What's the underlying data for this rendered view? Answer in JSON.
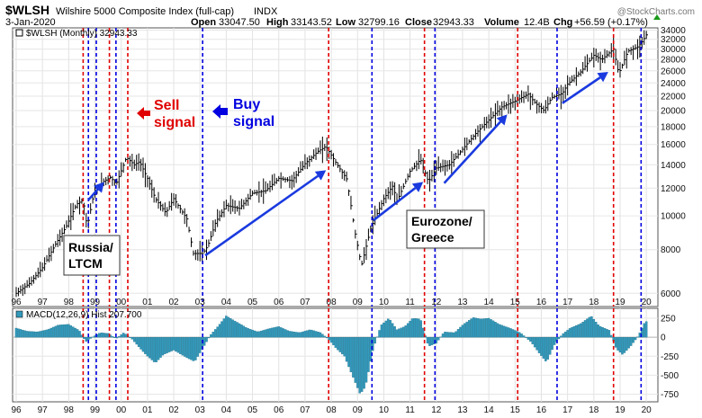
{
  "header": {
    "symbol": "$WLSH",
    "name": "Wilshire 5000 Composite Index (full-cap)",
    "exchange": "INDX",
    "date": "3-Jan-2020",
    "open_label": "Open",
    "open": "33047.50",
    "high_label": "High",
    "high": "33143.52",
    "low_label": "Low",
    "low": "32799.16",
    "close_label": "Close",
    "close": "32943.33",
    "volume_label": "Volume",
    "volume": "12.4B",
    "chg_label": "Chg",
    "chg": "+56.59 (+0.17%)",
    "watermark": "@StockCharts.com"
  },
  "colors": {
    "sell_line": "#e00000",
    "buy_line": "#0000e0",
    "price": "#000000",
    "macd_hist": "#3399bb",
    "arrow": "#1a3adf"
  },
  "chart_data": [
    {
      "type": "line",
      "legend": "$WLSH (Monthly) 32943.33",
      "yscale": "log",
      "ylim": [
        5500,
        34500
      ],
      "xlim": [
        1996.0,
        2020.2
      ],
      "yticks": [
        6000,
        8000,
        10000,
        12000,
        14000,
        16000,
        18000,
        20000,
        22000,
        24000,
        26000,
        28000,
        30000,
        32000,
        34000
      ],
      "xticks": [
        {
          "x": 1996,
          "label": "96"
        },
        {
          "x": 1997,
          "label": "97"
        },
        {
          "x": 1998,
          "label": "98"
        },
        {
          "x": 1999,
          "label": "99"
        },
        {
          "x": 2000,
          "label": "00"
        },
        {
          "x": 2001,
          "label": "01"
        },
        {
          "x": 2002,
          "label": "02"
        },
        {
          "x": 2003,
          "label": "03"
        },
        {
          "x": 2004,
          "label": "04"
        },
        {
          "x": 2005,
          "label": "05"
        },
        {
          "x": 2006,
          "label": "06"
        },
        {
          "x": 2007,
          "label": "07"
        },
        {
          "x": 2008,
          "label": "08"
        },
        {
          "x": 2009,
          "label": "09"
        },
        {
          "x": 2010,
          "label": "10"
        },
        {
          "x": 2011,
          "label": "11"
        },
        {
          "x": 2012,
          "label": "12"
        },
        {
          "x": 2013,
          "label": "13"
        },
        {
          "x": 2014,
          "label": "14"
        },
        {
          "x": 2015,
          "label": "15"
        },
        {
          "x": 2016,
          "label": "16"
        },
        {
          "x": 2017,
          "label": "17"
        },
        {
          "x": 2018,
          "label": "18"
        },
        {
          "x": 2019,
          "label": "19"
        },
        {
          "x": 2020,
          "label": "20"
        }
      ],
      "series": [
        {
          "points": [
            [
              1996.0,
              6000
            ],
            [
              1996.5,
              6400
            ],
            [
              1997.0,
              7100
            ],
            [
              1997.5,
              8300
            ],
            [
              1997.9,
              9300
            ],
            [
              1998.3,
              10800
            ],
            [
              1998.55,
              11100
            ],
            [
              1998.7,
              9300
            ],
            [
              1998.95,
              11500
            ],
            [
              1999.3,
              12500
            ],
            [
              1999.6,
              12900
            ],
            [
              1999.8,
              12300
            ],
            [
              2000.2,
              14700
            ],
            [
              2000.5,
              14000
            ],
            [
              2000.7,
              14300
            ],
            [
              2001.0,
              12800
            ],
            [
              2001.3,
              11200
            ],
            [
              2001.7,
              10200
            ],
            [
              2002.0,
              11200
            ],
            [
              2002.5,
              9800
            ],
            [
              2002.75,
              7800
            ],
            [
              2003.1,
              7800
            ],
            [
              2003.3,
              8200
            ],
            [
              2003.6,
              9600
            ],
            [
              2004.0,
              10700
            ],
            [
              2004.5,
              10500
            ],
            [
              2005.0,
              11600
            ],
            [
              2005.5,
              11800
            ],
            [
              2006.0,
              12800
            ],
            [
              2006.5,
              12600
            ],
            [
              2007.0,
              14100
            ],
            [
              2007.5,
              15300
            ],
            [
              2007.8,
              15800
            ],
            [
              2008.2,
              14100
            ],
            [
              2008.6,
              12700
            ],
            [
              2008.9,
              9000
            ],
            [
              2009.15,
              7200
            ],
            [
              2009.5,
              9200
            ],
            [
              2010.0,
              11200
            ],
            [
              2010.35,
              12200
            ],
            [
              2010.5,
              11000
            ],
            [
              2011.0,
              13400
            ],
            [
              2011.4,
              14500
            ],
            [
              2011.7,
              12500
            ],
            [
              2012.0,
              13700
            ],
            [
              2012.5,
              14000
            ],
            [
              2013.0,
              15500
            ],
            [
              2013.5,
              17200
            ],
            [
              2014.0,
              18800
            ],
            [
              2014.5,
              20500
            ],
            [
              2015.0,
              21300
            ],
            [
              2015.5,
              22300
            ],
            [
              2015.75,
              21100
            ],
            [
              2016.1,
              20000
            ],
            [
              2016.4,
              21800
            ],
            [
              2016.8,
              22400
            ],
            [
              2017.0,
              23800
            ],
            [
              2017.5,
              25800
            ],
            [
              2018.0,
              28800
            ],
            [
              2018.3,
              28000
            ],
            [
              2018.75,
              30000
            ],
            [
              2018.95,
              25500
            ],
            [
              2019.3,
              29600
            ],
            [
              2019.7,
              30500
            ],
            [
              2019.9,
              32000
            ],
            [
              2020.0,
              32943
            ]
          ]
        }
      ]
    },
    {
      "type": "bar",
      "legend": "MACD(12,26,9) Hist 207.700",
      "ylim": [
        -850,
        380
      ],
      "yticks": [
        -750,
        -500,
        -250,
        0,
        250
      ],
      "series": [
        {
          "points": [
            [
              1996.0,
              120
            ],
            [
              1996.4,
              80
            ],
            [
              1996.8,
              70
            ],
            [
              1997.2,
              100
            ],
            [
              1997.6,
              160
            ],
            [
              1998.0,
              170
            ],
            [
              1998.4,
              90
            ],
            [
              1998.65,
              -60
            ],
            [
              1998.9,
              0
            ],
            [
              1999.2,
              60
            ],
            [
              1999.5,
              50
            ],
            [
              1999.8,
              -20
            ],
            [
              2000.1,
              60
            ],
            [
              2000.4,
              -20
            ],
            [
              2000.7,
              -140
            ],
            [
              2001.0,
              -250
            ],
            [
              2001.3,
              -340
            ],
            [
              2001.6,
              -230
            ],
            [
              2002.0,
              -170
            ],
            [
              2002.5,
              -270
            ],
            [
              2002.8,
              -320
            ],
            [
              2003.1,
              -150
            ],
            [
              2003.4,
              30
            ],
            [
              2003.7,
              150
            ],
            [
              2004.0,
              280
            ],
            [
              2004.4,
              200
            ],
            [
              2004.8,
              120
            ],
            [
              2005.2,
              70
            ],
            [
              2005.6,
              110
            ],
            [
              2006.0,
              140
            ],
            [
              2006.4,
              80
            ],
            [
              2006.8,
              60
            ],
            [
              2007.2,
              100
            ],
            [
              2007.6,
              60
            ],
            [
              2007.9,
              -30
            ],
            [
              2008.2,
              -150
            ],
            [
              2008.5,
              -250
            ],
            [
              2008.8,
              -500
            ],
            [
              2009.1,
              -750
            ],
            [
              2009.3,
              -650
            ],
            [
              2009.6,
              -150
            ],
            [
              2009.9,
              160
            ],
            [
              2010.2,
              250
            ],
            [
              2010.5,
              100
            ],
            [
              2010.8,
              140
            ],
            [
              2011.1,
              250
            ],
            [
              2011.4,
              240
            ],
            [
              2011.7,
              -120
            ],
            [
              2012.0,
              -80
            ],
            [
              2012.3,
              70
            ],
            [
              2012.7,
              60
            ],
            [
              2013.0,
              160
            ],
            [
              2013.4,
              260
            ],
            [
              2013.7,
              240
            ],
            [
              2014.0,
              250
            ],
            [
              2014.4,
              170
            ],
            [
              2014.8,
              120
            ],
            [
              2015.2,
              60
            ],
            [
              2015.6,
              -60
            ],
            [
              2015.9,
              -200
            ],
            [
              2016.2,
              -330
            ],
            [
              2016.5,
              -100
            ],
            [
              2016.8,
              40
            ],
            [
              2017.1,
              120
            ],
            [
              2017.5,
              180
            ],
            [
              2017.9,
              280
            ],
            [
              2018.2,
              150
            ],
            [
              2018.6,
              90
            ],
            [
              2018.85,
              -150
            ],
            [
              2019.1,
              -230
            ],
            [
              2019.4,
              -120
            ],
            [
              2019.7,
              20
            ],
            [
              2019.95,
              207
            ]
          ]
        }
      ]
    }
  ],
  "signals": {
    "sell_years": [
      1998.55,
      1999.55,
      2000.25,
      2007.9,
      2011.55,
      2015.1,
      2018.75
    ],
    "buy_years": [
      1998.75,
      1999.05,
      1999.8,
      2003.1,
      2009.55,
      2011.95,
      2016.6,
      2019.8
    ]
  },
  "annotations": {
    "sell_line1": "Sell",
    "sell_line2": "signal",
    "buy_line1": "Buy",
    "buy_line2": "signal",
    "russia_line1": "Russia/",
    "russia_line2": "LTCM",
    "euro_line1": "Eurozone/",
    "euro_line2": "Greece"
  },
  "arrows": [
    {
      "from": [
        1998.75,
        11100
      ],
      "to": [
        1999.35,
        12500
      ]
    },
    {
      "from": [
        2003.2,
        7700
      ],
      "to": [
        2007.8,
        13500
      ]
    },
    {
      "from": [
        2009.6,
        9700
      ],
      "to": [
        2011.5,
        12500
      ]
    },
    {
      "from": [
        2012.3,
        12400
      ],
      "to": [
        2014.7,
        19500
      ]
    },
    {
      "from": [
        2016.8,
        21000
      ],
      "to": [
        2018.55,
        25800
      ]
    }
  ]
}
